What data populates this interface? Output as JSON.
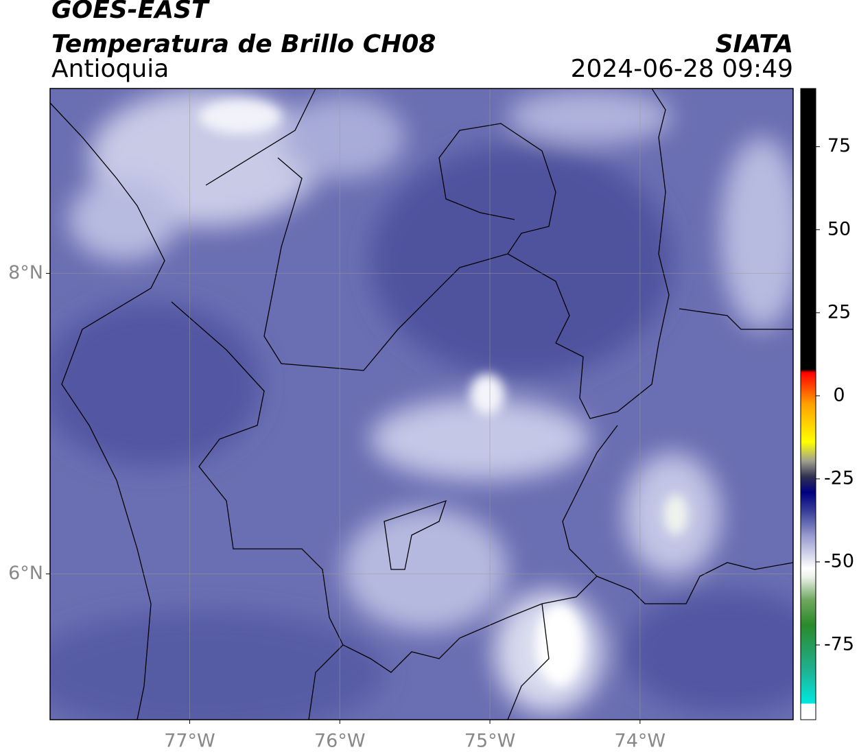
{
  "header": {
    "title": "GOES-EAST",
    "subtitle": "Temperatura de Brillo CH08",
    "region": "Antioquia",
    "source": "SIATA",
    "timestamp": "2024-06-28 09:49"
  },
  "map": {
    "xlim": [
      -77.93,
      -72.98
    ],
    "ylim": [
      5.03,
      9.23
    ],
    "xticks": [
      {
        "value": -77,
        "label": "77°W"
      },
      {
        "value": -76,
        "label": "76°W"
      },
      {
        "value": -75,
        "label": "75°W"
      },
      {
        "value": -74,
        "label": "74°W"
      }
    ],
    "yticks": [
      {
        "value": 8,
        "label": "8°N"
      },
      {
        "value": 6,
        "label": "6°N"
      }
    ]
  },
  "colorbar": {
    "lim": [
      -97.5,
      92.5
    ],
    "ticks": [
      75,
      50,
      25,
      0,
      -25,
      -50,
      -75
    ]
  }
}
